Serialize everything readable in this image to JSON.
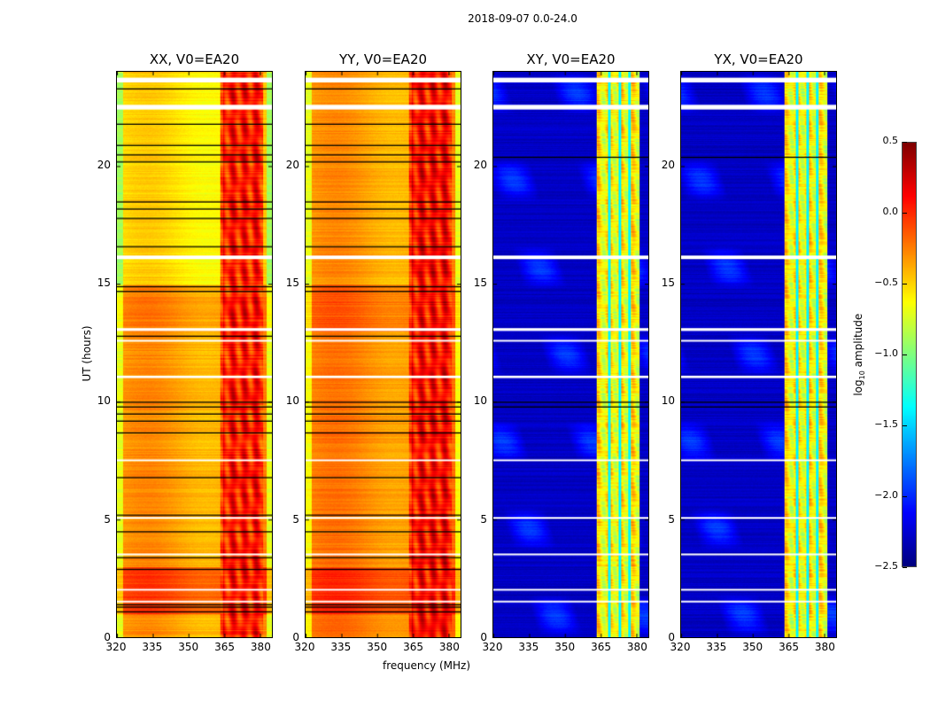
{
  "chart_data": {
    "type": "heatmap",
    "title": "2018-09-07 0.0-24.0",
    "xlabel": "frequency (MHz)",
    "ylabel": "UT (hours)",
    "xlim": [
      320,
      385
    ],
    "ylim": [
      0,
      24
    ],
    "xticks": [
      "320",
      "335",
      "350",
      "365",
      "380"
    ],
    "xtick_values": [
      320,
      335,
      350,
      365,
      380
    ],
    "yticks": [
      "0",
      "5",
      "10",
      "15",
      "20"
    ],
    "ytick_values": [
      0,
      5,
      10,
      15,
      20
    ],
    "colorbar": {
      "label": "log10 amplitude",
      "label_main": "log",
      "label_sub": "10",
      "label_rest": " amplitude",
      "range": [
        -2.5,
        0.5
      ],
      "ticks": [
        "0.5",
        "0.0",
        "−0.5",
        "−1.0",
        "−1.5",
        "−2.0",
        "−2.5"
      ],
      "tick_values": [
        0.5,
        0.0,
        -0.5,
        -1.0,
        -1.5,
        -2.0,
        -2.5
      ],
      "colormap": "jet"
    },
    "rfi_band_mhz": [
      363,
      381
    ],
    "flagged_hours_white": [
      [
        23.55,
        23.75
      ],
      [
        22.4,
        22.6
      ],
      [
        16.05,
        16.2
      ],
      [
        13.0,
        13.12
      ],
      [
        12.55,
        12.62
      ],
      [
        11.0,
        11.1
      ],
      [
        7.5,
        7.55
      ],
      [
        5.05,
        5.1
      ],
      [
        3.5,
        3.55
      ],
      [
        2.0,
        2.05
      ],
      [
        1.5,
        1.55
      ]
    ],
    "panels": [
      {
        "title": "XX, V0=EA20",
        "kind": "auto",
        "base": [
          [
            0,
            1,
            -0.35
          ],
          [
            1,
            3,
            -0.1
          ],
          [
            3,
            13,
            -0.35
          ],
          [
            13,
            15,
            -0.3
          ],
          [
            15,
            24,
            -0.55
          ]
        ],
        "rfi_level": 0.05,
        "black_lines": [
          23.3,
          21.8,
          20.9,
          20.5,
          20.2,
          18.5,
          18.2,
          17.8,
          16.6,
          14.9,
          14.7,
          12.8,
          10.0,
          9.8,
          9.5,
          9.2,
          8.7,
          6.8,
          5.2,
          4.5,
          3.4,
          2.9,
          1.4,
          1.3,
          1.1
        ]
      },
      {
        "title": "YY, V0=EA20",
        "kind": "auto",
        "base": [
          [
            0,
            1,
            -0.25
          ],
          [
            1,
            3,
            -0.05
          ],
          [
            3,
            13,
            -0.28
          ],
          [
            13,
            15,
            -0.18
          ],
          [
            15,
            24,
            -0.35
          ]
        ],
        "rfi_level": 0.1,
        "black_lines": [
          23.3,
          21.8,
          20.9,
          20.5,
          20.2,
          18.5,
          18.2,
          17.8,
          16.6,
          14.9,
          14.7,
          12.8,
          10.0,
          9.8,
          9.5,
          9.2,
          8.7,
          6.8,
          5.2,
          4.5,
          3.4,
          2.9,
          1.4,
          1.3,
          1.1
        ]
      },
      {
        "title": "XY, V0=EA20",
        "kind": "cross",
        "base": [
          [
            0,
            24,
            -2.3
          ]
        ],
        "rfi_level": -0.6,
        "black_lines": [
          20.4,
          10.0,
          9.8
        ]
      },
      {
        "title": "YX, V0=EA20",
        "kind": "cross",
        "base": [
          [
            0,
            24,
            -2.3
          ]
        ],
        "rfi_level": -0.6,
        "black_lines": [
          20.4,
          10.0,
          9.8
        ]
      }
    ]
  }
}
